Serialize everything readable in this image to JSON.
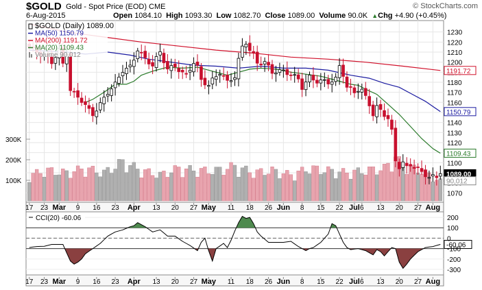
{
  "header": {
    "symbol": "$GOLD",
    "description": "Gold - Spot Price (EOD)  CME",
    "date": "6-Aug-2015",
    "watermark": "© StockCharts.com",
    "ohlc": {
      "open_label": "Open",
      "open": "1084.10",
      "high_label": "High",
      "high": "1093.30",
      "low_label": "Low",
      "low": "1082.70",
      "close_label": "Close",
      "close": "1089.00",
      "volume_label": "Volume",
      "volume": "90.0K",
      "chg_label": "Chg",
      "chg": "+4.90 (+0.45%)",
      "chg_arrow": "▲"
    }
  },
  "colors": {
    "up": "#000000",
    "down": "#c8102e",
    "ma50": "#1a1aa0",
    "ma200": "#d0102a",
    "ma20": "#2a7a2a",
    "vol_up": "#b0b0b0",
    "vol_down": "#e8a4ae",
    "cci_pos": "#4f8a4f",
    "cci_neg": "#8a4040"
  },
  "chart_data": [
    {
      "type": "candlestick",
      "title": "$GOLD (Daily) 1089.00",
      "ylim": [
        1062,
        1240
      ],
      "yticks": [
        1070,
        1080,
        1090,
        1100,
        1110,
        1120,
        1130,
        1140,
        1150,
        1160,
        1170,
        1180,
        1190,
        1200,
        1210,
        1220,
        1230
      ],
      "volume_ticks": [
        {
          "label": "100K",
          "value": 100000
        },
        {
          "label": "200K",
          "value": 200000
        },
        {
          "label": "300K",
          "value": 300000
        }
      ],
      "volume_max": 400000,
      "legend": [
        {
          "label": "$GOLD (Daily) 1089.00",
          "color": "#000000"
        },
        {
          "label": "MA(50) 1150.79",
          "color": "#1a1aa0"
        },
        {
          "label": "MA(200) 1191.72",
          "color": "#d0102a"
        },
        {
          "label": "MA(20) 1109.43",
          "color": "#2a7a2a"
        },
        {
          "label": "Volume 90,012",
          "color": "#888888"
        }
      ],
      "last_value_tags": [
        {
          "label": "1191.72",
          "value": 1191.72,
          "color": "#d0102a"
        },
        {
          "label": "1150.79",
          "value": 1150.79,
          "color": "#1a1aa0"
        },
        {
          "label": "1109.43",
          "value": 1109.43,
          "color": "#2a7a2a"
        },
        {
          "label": "1089.00",
          "value": 1089.0,
          "color": "#000000"
        },
        {
          "label": "90,012",
          "value": 1082.0,
          "color": "#888888"
        }
      ],
      "x_labels": [
        {
          "label": "17",
          "i": 0
        },
        {
          "label": "23",
          "i": 4
        },
        {
          "label": "Mar",
          "i": 8,
          "bold": true
        },
        {
          "label": "9",
          "i": 13
        },
        {
          "label": "16",
          "i": 18
        },
        {
          "label": "23",
          "i": 23
        },
        {
          "label": "Apr",
          "i": 28,
          "bold": true
        },
        {
          "label": "13",
          "i": 34
        },
        {
          "label": "20",
          "i": 39
        },
        {
          "label": "27",
          "i": 44
        },
        {
          "label": "May",
          "i": 48,
          "bold": true
        },
        {
          "label": "11",
          "i": 54
        },
        {
          "label": "18",
          "i": 59
        },
        {
          "label": "26",
          "i": 64
        },
        {
          "label": "Jun",
          "i": 68,
          "bold": true
        },
        {
          "label": "8",
          "i": 73
        },
        {
          "label": "15",
          "i": 78
        },
        {
          "label": "22",
          "i": 83
        },
        {
          "label": "Jul",
          "i": 87,
          "bold": true
        },
        {
          "label": "6",
          "i": 89
        },
        {
          "label": "13",
          "i": 94
        },
        {
          "label": "20",
          "i": 99
        },
        {
          "label": "27",
          "i": 104
        },
        {
          "label": "Aug",
          "i": 108,
          "bold": true
        }
      ],
      "close_anchors": [
        [
          0,
          1215
        ],
        [
          3,
          1208
        ],
        [
          5,
          1205
        ],
        [
          6,
          1200
        ],
        [
          8,
          1212
        ],
        [
          9,
          1198
        ],
        [
          10,
          1210
        ],
        [
          11,
          1172
        ],
        [
          14,
          1162
        ],
        [
          16,
          1152
        ],
        [
          17,
          1148
        ],
        [
          19,
          1158
        ],
        [
          21,
          1170
        ],
        [
          23,
          1178
        ],
        [
          25,
          1192
        ],
        [
          27,
          1195
        ],
        [
          28,
          1203
        ],
        [
          29,
          1213
        ],
        [
          31,
          1203
        ],
        [
          33,
          1197
        ],
        [
          35,
          1210
        ],
        [
          37,
          1193
        ],
        [
          39,
          1196
        ],
        [
          41,
          1189
        ],
        [
          42,
          1187
        ],
        [
          44,
          1200
        ],
        [
          45,
          1195
        ],
        [
          46,
          1182
        ],
        [
          48,
          1177
        ],
        [
          49,
          1182
        ],
        [
          51,
          1190
        ],
        [
          53,
          1180
        ],
        [
          55,
          1186
        ],
        [
          56,
          1202
        ],
        [
          57,
          1215
        ],
        [
          58,
          1220
        ],
        [
          59,
          1212
        ],
        [
          60,
          1207
        ],
        [
          61,
          1199
        ],
        [
          63,
          1200
        ],
        [
          64,
          1195
        ],
        [
          65,
          1190
        ],
        [
          66,
          1191
        ],
        [
          68,
          1191
        ],
        [
          70,
          1188
        ],
        [
          72,
          1183
        ],
        [
          73,
          1175
        ],
        [
          74,
          1180
        ],
        [
          75,
          1185
        ],
        [
          77,
          1181
        ],
        [
          79,
          1181
        ],
        [
          80,
          1180
        ],
        [
          82,
          1183
        ],
        [
          83,
          1196
        ],
        [
          84,
          1188
        ],
        [
          85,
          1175
        ],
        [
          86,
          1173
        ],
        [
          87,
          1170
        ],
        [
          88,
          1173
        ],
        [
          89,
          1172
        ],
        [
          91,
          1158
        ],
        [
          92,
          1148
        ],
        [
          93,
          1155
        ],
        [
          94,
          1152
        ],
        [
          95,
          1148
        ],
        [
          96,
          1144
        ],
        [
          97,
          1131
        ],
        [
          98,
          1102
        ],
        [
          99,
          1096
        ],
        [
          100,
          1100
        ],
        [
          101,
          1095
        ],
        [
          102,
          1098
        ],
        [
          103,
          1096
        ],
        [
          104,
          1094
        ],
        [
          105,
          1090
        ],
        [
          106,
          1088
        ],
        [
          107,
          1086
        ],
        [
          108,
          1086
        ],
        [
          109,
          1085
        ],
        [
          110,
          1089
        ]
      ],
      "ma20_anchors": [
        [
          15,
          1160
        ],
        [
          17,
          1163
        ],
        [
          20,
          1170
        ],
        [
          23,
          1178
        ],
        [
          26,
          1178
        ],
        [
          28,
          1181
        ],
        [
          30,
          1187
        ],
        [
          33,
          1191
        ],
        [
          37,
          1195
        ],
        [
          41,
          1194
        ],
        [
          45,
          1195
        ],
        [
          49,
          1191
        ],
        [
          53,
          1187
        ],
        [
          56,
          1190
        ],
        [
          59,
          1193
        ],
        [
          62,
          1194
        ],
        [
          66,
          1193
        ],
        [
          70,
          1190
        ],
        [
          74,
          1188
        ],
        [
          78,
          1186
        ],
        [
          82,
          1182
        ],
        [
          86,
          1178
        ],
        [
          88,
          1177
        ],
        [
          90,
          1173
        ],
        [
          93,
          1168
        ],
        [
          96,
          1158
        ],
        [
          99,
          1148
        ],
        [
          102,
          1136
        ],
        [
          105,
          1124
        ],
        [
          108,
          1114
        ],
        [
          110,
          1109.43
        ]
      ],
      "ma50_anchors": [
        [
          0,
          1212
        ],
        [
          10,
          1210
        ],
        [
          15,
          1208
        ],
        [
          21,
          1210
        ],
        [
          27,
          1207
        ],
        [
          32,
          1203
        ],
        [
          38,
          1200
        ],
        [
          44,
          1197
        ],
        [
          50,
          1196
        ],
        [
          56,
          1194
        ],
        [
          62,
          1196
        ],
        [
          68,
          1194
        ],
        [
          74,
          1194
        ],
        [
          80,
          1192
        ],
        [
          86,
          1187
        ],
        [
          91,
          1184
        ],
        [
          95,
          1179
        ],
        [
          99,
          1175
        ],
        [
          102,
          1169
        ],
        [
          106,
          1161
        ],
        [
          110,
          1150.79
        ]
      ],
      "ma200_anchors": [
        [
          0,
          1238
        ],
        [
          10,
          1230
        ],
        [
          20,
          1225
        ],
        [
          30,
          1220
        ],
        [
          40,
          1216
        ],
        [
          50,
          1212
        ],
        [
          60,
          1209
        ],
        [
          70,
          1205
        ],
        [
          80,
          1203
        ],
        [
          90,
          1200
        ],
        [
          100,
          1196
        ],
        [
          110,
          1191.72
        ]
      ],
      "volume_anchors": [
        [
          0,
          120000
        ],
        [
          5,
          140000
        ],
        [
          10,
          130000
        ],
        [
          15,
          150000
        ],
        [
          20,
          130000
        ],
        [
          25,
          180000
        ],
        [
          30,
          140000
        ],
        [
          35,
          120000
        ],
        [
          40,
          150000
        ],
        [
          45,
          140000
        ],
        [
          50,
          140000
        ],
        [
          55,
          160000
        ],
        [
          60,
          130000
        ],
        [
          65,
          140000
        ],
        [
          70,
          120000
        ],
        [
          75,
          150000
        ],
        [
          80,
          140000
        ],
        [
          85,
          130000
        ],
        [
          90,
          140000
        ],
        [
          95,
          150000
        ],
        [
          98,
          200000
        ],
        [
          100,
          160000
        ],
        [
          105,
          140000
        ],
        [
          110,
          90012
        ]
      ]
    },
    {
      "type": "line",
      "title": "CCI(20) -60.06",
      "ylim": [
        -340,
        240
      ],
      "yticks": [
        {
          "label": "200",
          "value": 200
        },
        {
          "label": "100",
          "value": 100
        },
        {
          "label": "0",
          "value": 0
        },
        {
          "label": "-100",
          "value": -100
        },
        {
          "label": "-200",
          "value": -200
        },
        {
          "label": "-300",
          "value": -300
        }
      ],
      "reference_lines": [
        100,
        0,
        -100
      ],
      "last_value": {
        "label": "-60.06",
        "value": -60.06
      },
      "anchors": [
        [
          0,
          -90
        ],
        [
          2,
          -80
        ],
        [
          4,
          -78
        ],
        [
          6,
          -60
        ],
        [
          8,
          -60
        ],
        [
          9,
          -60
        ],
        [
          10,
          -140
        ],
        [
          11,
          -220
        ],
        [
          12,
          -250
        ],
        [
          13,
          -230
        ],
        [
          14,
          -200
        ],
        [
          15,
          -150
        ],
        [
          17,
          -100
        ],
        [
          19,
          -50
        ],
        [
          21,
          20
        ],
        [
          23,
          60
        ],
        [
          25,
          80
        ],
        [
          27,
          110
        ],
        [
          28,
          120
        ],
        [
          29,
          150
        ],
        [
          31,
          110
        ],
        [
          33,
          60
        ],
        [
          35,
          80
        ],
        [
          37,
          20
        ],
        [
          39,
          20
        ],
        [
          41,
          -30
        ],
        [
          43,
          -70
        ],
        [
          45,
          -120
        ],
        [
          46,
          -40
        ],
        [
          47,
          0
        ],
        [
          48,
          -120
        ],
        [
          49,
          -220
        ],
        [
          50,
          -100
        ],
        [
          52,
          -50
        ],
        [
          53,
          -90
        ],
        [
          54,
          -20
        ],
        [
          55,
          70
        ],
        [
          56,
          150
        ],
        [
          57,
          210
        ],
        [
          58,
          190
        ],
        [
          59,
          200
        ],
        [
          60,
          140
        ],
        [
          61,
          60
        ],
        [
          62,
          20
        ],
        [
          64,
          -40
        ],
        [
          66,
          -40
        ],
        [
          68,
          -40
        ],
        [
          70,
          -30
        ],
        [
          72,
          -80
        ],
        [
          74,
          -120
        ],
        [
          75,
          -100
        ],
        [
          76,
          -90
        ],
        [
          78,
          -40
        ],
        [
          80,
          40
        ],
        [
          81,
          140
        ],
        [
          82,
          120
        ],
        [
          83,
          40
        ],
        [
          84,
          -40
        ],
        [
          85,
          -90
        ],
        [
          86,
          -110
        ],
        [
          88,
          -100
        ],
        [
          90,
          -120
        ],
        [
          92,
          -160
        ],
        [
          93,
          -110
        ],
        [
          94,
          -130
        ],
        [
          95,
          -170
        ],
        [
          96,
          -130
        ],
        [
          97,
          -90
        ],
        [
          98,
          -100
        ],
        [
          99,
          -230
        ],
        [
          100,
          -290
        ],
        [
          101,
          -250
        ],
        [
          102,
          -200
        ],
        [
          104,
          -130
        ],
        [
          106,
          -90
        ],
        [
          108,
          -80
        ],
        [
          110,
          -60
        ]
      ]
    }
  ]
}
